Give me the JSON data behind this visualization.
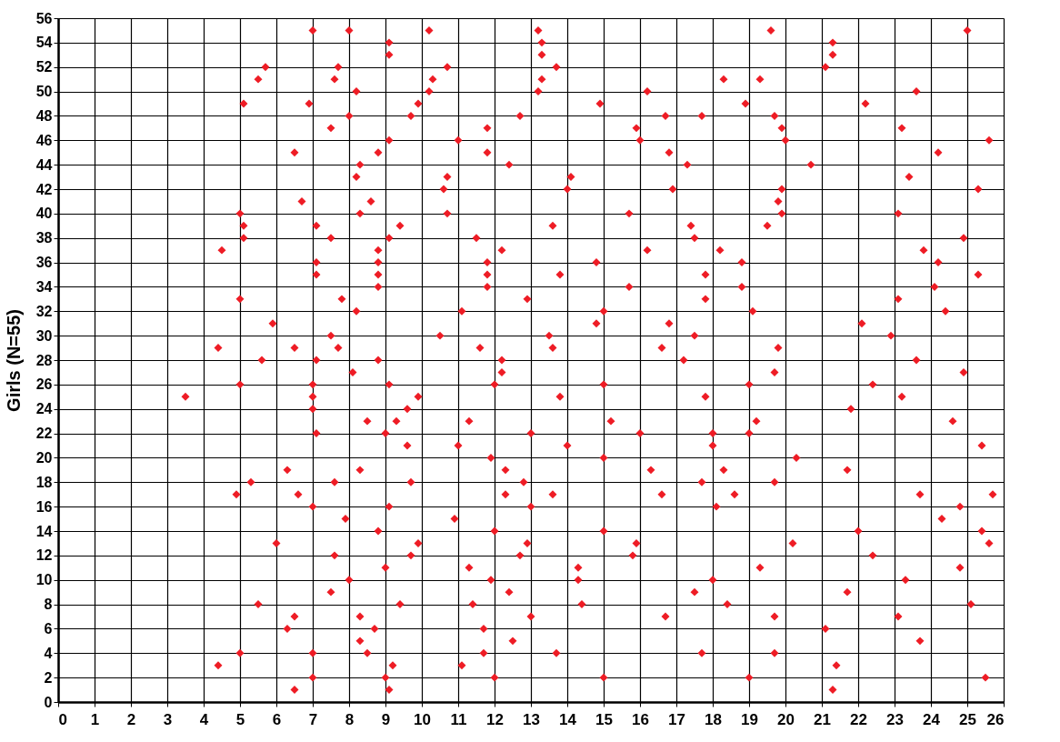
{
  "chart_data": {
    "type": "scatter",
    "ylabel": "Girls (N=55)",
    "xlim": [
      0,
      26
    ],
    "xticks": [
      0,
      1,
      2,
      3,
      4,
      5,
      6,
      7,
      8,
      9,
      10,
      11,
      12,
      13,
      14,
      15,
      16,
      17,
      18,
      19,
      20,
      21,
      22,
      23,
      24,
      25,
      26
    ],
    "ylim": [
      0,
      56
    ],
    "yticks": [
      0,
      2,
      4,
      6,
      8,
      10,
      12,
      14,
      16,
      18,
      20,
      22,
      24,
      26,
      28,
      30,
      32,
      34,
      36,
      38,
      40,
      42,
      44,
      46,
      48,
      50,
      52,
      54,
      56
    ],
    "grid": true,
    "marker": "diamond",
    "legend": false,
    "series": [
      {
        "color": "#ee1c25",
        "x": [
          7.0,
          8.0,
          10.2,
          13.2,
          19.6,
          25.0,
          9.1,
          13.3,
          21.3,
          9.1,
          13.3,
          21.3,
          5.7,
          7.7,
          10.7,
          13.7,
          21.1,
          5.5,
          7.6,
          10.3,
          13.3,
          18.3,
          19.3,
          8.2,
          10.2,
          13.2,
          16.2,
          23.6,
          5.1,
          6.9,
          9.9,
          14.9,
          18.9,
          22.2,
          8.0,
          9.7,
          12.7,
          16.7,
          17.7,
          19.7,
          7.5,
          11.8,
          15.9,
          19.9,
          23.2,
          9.1,
          11.0,
          16.0,
          20.0,
          25.6,
          6.5,
          8.8,
          11.8,
          16.8,
          24.2,
          8.3,
          12.4,
          17.3,
          20.7,
          8.2,
          10.7,
          14.1,
          23.4,
          10.6,
          14.0,
          16.9,
          19.9,
          25.3,
          6.7,
          8.6,
          19.8,
          5.0,
          8.3,
          10.7,
          15.7,
          19.9,
          23.1,
          5.1,
          7.1,
          9.4,
          13.6,
          17.4,
          19.5,
          5.1,
          7.5,
          9.1,
          11.5,
          17.5,
          24.9,
          4.5,
          8.8,
          12.2,
          16.2,
          18.2,
          23.8,
          7.1,
          8.8,
          11.8,
          14.8,
          18.8,
          24.2,
          7.1,
          8.8,
          11.8,
          13.8,
          17.8,
          25.3,
          8.8,
          11.8,
          15.7,
          18.8,
          24.1,
          5.0,
          7.8,
          12.9,
          17.8,
          23.1,
          8.2,
          11.1,
          15.0,
          19.1,
          24.4,
          5.9,
          14.8,
          16.8,
          22.1,
          7.5,
          10.5,
          13.5,
          17.5,
          22.9,
          4.4,
          6.5,
          7.7,
          11.6,
          13.6,
          16.6,
          19.8,
          5.6,
          7.1,
          8.8,
          12.2,
          17.2,
          23.6,
          8.1,
          12.2,
          19.7,
          24.9,
          5.0,
          7.0,
          9.1,
          12.0,
          15.0,
          19.0,
          22.4,
          3.5,
          7.0,
          9.9,
          13.8,
          17.8,
          23.2,
          7.0,
          9.6,
          21.8,
          8.5,
          9.3,
          11.3,
          15.2,
          19.2,
          24.6,
          7.1,
          9.0,
          13.0,
          16.0,
          18.0,
          19.0,
          9.6,
          11.0,
          14.0,
          18.0,
          25.4,
          11.9,
          15.0,
          20.3,
          6.3,
          8.3,
          12.3,
          16.3,
          18.3,
          21.7,
          5.3,
          7.6,
          9.7,
          12.8,
          17.7,
          19.7,
          4.9,
          6.6,
          12.3,
          13.6,
          16.6,
          18.6,
          23.7,
          25.7,
          7.0,
          9.1,
          13.0,
          18.1,
          24.8,
          7.9,
          10.9,
          24.3,
          8.8,
          12.0,
          15.0,
          22.0,
          25.4,
          6.0,
          9.9,
          12.9,
          15.9,
          20.2,
          25.6,
          7.6,
          9.7,
          12.7,
          15.8,
          22.4,
          9.0,
          11.3,
          14.3,
          19.3,
          24.8,
          8.0,
          11.9,
          14.3,
          18.0,
          23.3,
          7.5,
          12.4,
          17.5,
          21.7,
          5.5,
          9.4,
          11.4,
          14.4,
          18.4,
          25.1,
          6.5,
          8.3,
          13.0,
          16.7,
          19.7,
          23.1,
          6.3,
          8.7,
          11.7,
          21.1,
          8.3,
          12.5,
          23.7,
          5.0,
          7.0,
          8.5,
          11.7,
          13.7,
          17.7,
          19.7,
          4.4,
          9.2,
          11.1,
          21.4,
          7.0,
          9.0,
          12.0,
          15.0,
          19.0,
          25.5,
          6.5,
          9.1,
          21.3
        ],
        "values": [
          55,
          55,
          55,
          55,
          55,
          55,
          54,
          54,
          54,
          53,
          53,
          53,
          52,
          52,
          52,
          52,
          52,
          51,
          51,
          51,
          51,
          51,
          51,
          50,
          50,
          50,
          50,
          50,
          49,
          49,
          49,
          49,
          49,
          49,
          48,
          48,
          48,
          48,
          48,
          48,
          47,
          47,
          47,
          47,
          47,
          46,
          46,
          46,
          46,
          46,
          45,
          45,
          45,
          45,
          45,
          44,
          44,
          44,
          44,
          43,
          43,
          43,
          43,
          42,
          42,
          42,
          42,
          42,
          41,
          41,
          41,
          40,
          40,
          40,
          40,
          40,
          40,
          39,
          39,
          39,
          39,
          39,
          39,
          38,
          38,
          38,
          38,
          38,
          38,
          37,
          37,
          37,
          37,
          37,
          37,
          36,
          36,
          36,
          36,
          36,
          36,
          35,
          35,
          35,
          35,
          35,
          35,
          34,
          34,
          34,
          34,
          34,
          33,
          33,
          33,
          33,
          33,
          32,
          32,
          32,
          32,
          32,
          31,
          31,
          31,
          31,
          30,
          30,
          30,
          30,
          30,
          29,
          29,
          29,
          29,
          29,
          29,
          29,
          28,
          28,
          28,
          28,
          28,
          28,
          27,
          27,
          27,
          27,
          26,
          26,
          26,
          26,
          26,
          26,
          26,
          25,
          25,
          25,
          25,
          25,
          25,
          24,
          24,
          24,
          23,
          23,
          23,
          23,
          23,
          23,
          22,
          22,
          22,
          22,
          22,
          22,
          21,
          21,
          21,
          21,
          21,
          20,
          20,
          20,
          19,
          19,
          19,
          19,
          19,
          19,
          18,
          18,
          18,
          18,
          18,
          18,
          17,
          17,
          17,
          17,
          17,
          17,
          17,
          17,
          16,
          16,
          16,
          16,
          16,
          15,
          15,
          15,
          14,
          14,
          14,
          14,
          14,
          13,
          13,
          13,
          13,
          13,
          13,
          12,
          12,
          12,
          12,
          12,
          11,
          11,
          11,
          11,
          11,
          10,
          10,
          10,
          10,
          10,
          9,
          9,
          9,
          9,
          8,
          8,
          8,
          8,
          8,
          8,
          7,
          7,
          7,
          7,
          7,
          7,
          6,
          6,
          6,
          6,
          5,
          5,
          5,
          4,
          4,
          4,
          4,
          4,
          4,
          4,
          3,
          3,
          3,
          3,
          2,
          2,
          2,
          2,
          2,
          2,
          1,
          1,
          1
        ]
      }
    ]
  }
}
